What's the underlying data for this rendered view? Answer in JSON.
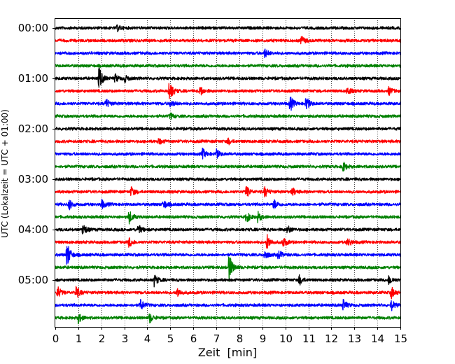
{
  "chart_data": {
    "type": "line",
    "chart_kind": "helicorder",
    "xlabel": "Zeit  [min]",
    "ylabel": "UTC (Lokalzeit = UTC + 01:00)",
    "xlim": [
      0,
      15
    ],
    "x_ticks": [
      "0",
      "1",
      "2",
      "3",
      "4",
      "5",
      "6",
      "7",
      "8",
      "9",
      "10",
      "11",
      "12",
      "13",
      "14",
      "15"
    ],
    "y_tick_labels": [
      "00:00",
      "01:00",
      "02:00",
      "03:00",
      "04:00",
      "05:00"
    ],
    "grid": "vertical dotted lines at each minute",
    "trace_interval_min": 15,
    "trace_count": 24,
    "color_cycle": [
      "#000000",
      "#ff0000",
      "#0000ff",
      "#008000"
    ],
    "events": [
      {
        "trace": 0,
        "t": 2.7,
        "amp": 0.3
      },
      {
        "trace": 1,
        "t": 10.7,
        "amp": 0.45
      },
      {
        "trace": 2,
        "t": 9.1,
        "amp": 0.45
      },
      {
        "trace": 4,
        "t": 1.9,
        "amp": 1.2
      },
      {
        "trace": 4,
        "t": 2.6,
        "amp": 0.4
      },
      {
        "trace": 4,
        "t": 3.0,
        "amp": 0.35
      },
      {
        "trace": 5,
        "t": 4.95,
        "amp": 1.2
      },
      {
        "trace": 5,
        "t": 6.3,
        "amp": 0.5
      },
      {
        "trace": 5,
        "t": 12.7,
        "amp": 0.4
      },
      {
        "trace": 5,
        "t": 14.5,
        "amp": 0.4
      },
      {
        "trace": 6,
        "t": 2.2,
        "amp": 0.5
      },
      {
        "trace": 6,
        "t": 10.2,
        "amp": 0.8
      },
      {
        "trace": 6,
        "t": 10.9,
        "amp": 0.7
      },
      {
        "trace": 6,
        "t": 5.0,
        "amp": 0.35
      },
      {
        "trace": 7,
        "t": 5.0,
        "amp": 0.3
      },
      {
        "trace": 9,
        "t": 4.5,
        "amp": 0.3
      },
      {
        "trace": 9,
        "t": 7.5,
        "amp": 0.3
      },
      {
        "trace": 10,
        "t": 6.4,
        "amp": 0.5
      },
      {
        "trace": 10,
        "t": 7.0,
        "amp": 0.45
      },
      {
        "trace": 11,
        "t": 12.5,
        "amp": 0.5
      },
      {
        "trace": 13,
        "t": 3.3,
        "amp": 0.5
      },
      {
        "trace": 13,
        "t": 8.3,
        "amp": 0.6
      },
      {
        "trace": 13,
        "t": 9.1,
        "amp": 0.5
      },
      {
        "trace": 13,
        "t": 10.3,
        "amp": 0.4
      },
      {
        "trace": 14,
        "t": 0.6,
        "amp": 0.5
      },
      {
        "trace": 14,
        "t": 2.0,
        "amp": 0.5
      },
      {
        "trace": 14,
        "t": 4.7,
        "amp": 0.5
      },
      {
        "trace": 14,
        "t": 9.5,
        "amp": 0.5
      },
      {
        "trace": 15,
        "t": 3.2,
        "amp": 0.7
      },
      {
        "trace": 15,
        "t": 8.3,
        "amp": 0.6
      },
      {
        "trace": 15,
        "t": 8.8,
        "amp": 0.5
      },
      {
        "trace": 16,
        "t": 1.2,
        "amp": 0.6
      },
      {
        "trace": 16,
        "t": 3.6,
        "amp": 0.5
      },
      {
        "trace": 16,
        "t": 10.1,
        "amp": 0.4
      },
      {
        "trace": 17,
        "t": 3.2,
        "amp": 0.5
      },
      {
        "trace": 17,
        "t": 9.2,
        "amp": 0.8
      },
      {
        "trace": 17,
        "t": 9.9,
        "amp": 0.5
      },
      {
        "trace": 17,
        "t": 12.7,
        "amp": 0.5
      },
      {
        "trace": 18,
        "t": 0.5,
        "amp": 1.4
      },
      {
        "trace": 18,
        "t": 9.1,
        "amp": 0.5
      },
      {
        "trace": 18,
        "t": 9.7,
        "amp": 0.5
      },
      {
        "trace": 19,
        "t": 7.55,
        "amp": 1.4
      },
      {
        "trace": 20,
        "t": 4.3,
        "amp": 0.6
      },
      {
        "trace": 20,
        "t": 10.6,
        "amp": 0.5
      },
      {
        "trace": 20,
        "t": 14.5,
        "amp": 0.5
      },
      {
        "trace": 21,
        "t": 0.1,
        "amp": 0.6
      },
      {
        "trace": 21,
        "t": 0.9,
        "amp": 0.7
      },
      {
        "trace": 21,
        "t": 5.3,
        "amp": 0.5
      },
      {
        "trace": 21,
        "t": 14.6,
        "amp": 0.6
      },
      {
        "trace": 22,
        "t": 3.7,
        "amp": 0.6
      },
      {
        "trace": 22,
        "t": 12.5,
        "amp": 0.6
      },
      {
        "trace": 22,
        "t": 14.6,
        "amp": 0.5
      },
      {
        "trace": 23,
        "t": 1.0,
        "amp": 0.5
      },
      {
        "trace": 23,
        "t": 4.1,
        "amp": 0.5
      }
    ]
  }
}
